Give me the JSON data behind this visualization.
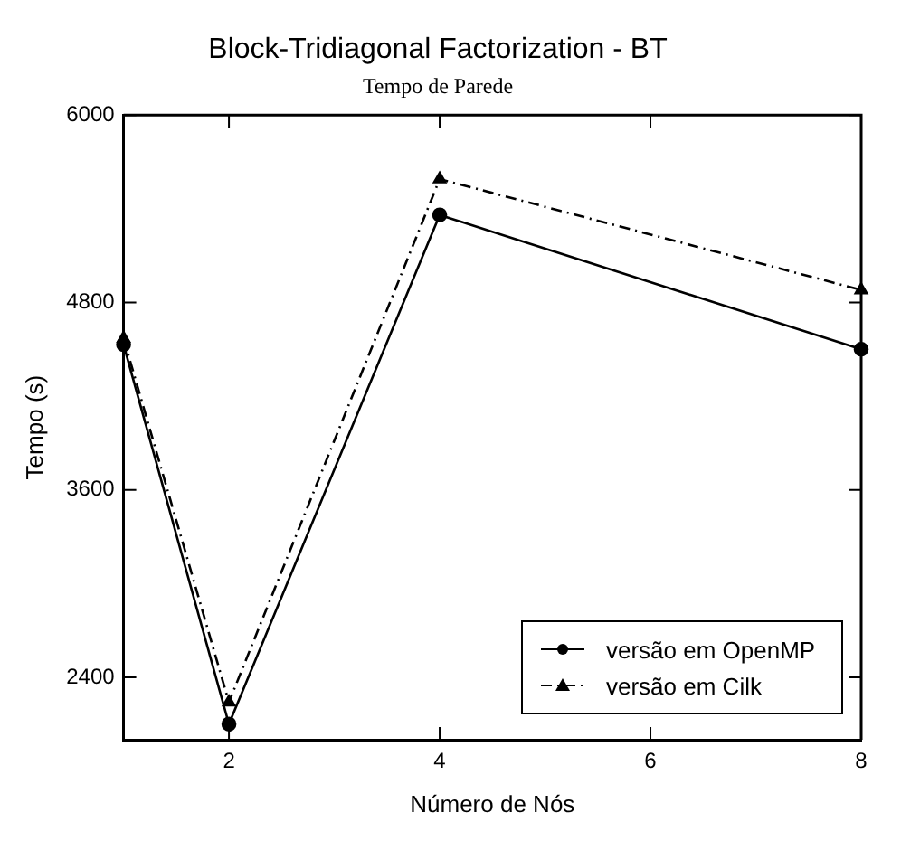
{
  "chart_data": {
    "type": "line",
    "title": "Block-Tridiagonal Factorization - BT",
    "subtitle": "Tempo de Parede",
    "xlabel": "Número de Nós",
    "ylabel": "Tempo (s)",
    "x": [
      1,
      2,
      4,
      8
    ],
    "series": [
      {
        "name": "versão em OpenMP",
        "color": "#000000",
        "values": [
          4530,
          2100,
          5360,
          4500
        ],
        "marker": "circle",
        "line_style": "solid"
      },
      {
        "name": "versão em Cilk",
        "color": "#000000",
        "values": [
          4570,
          2240,
          5590,
          4880
        ],
        "marker": "triangle",
        "line_style": "dashed"
      }
    ],
    "xlim": [
      1,
      8
    ],
    "xticks": [
      2,
      4,
      6,
      8
    ],
    "ylim": [
      2000,
      6000
    ],
    "yticks": [
      2400,
      3600,
      4800,
      6000
    ],
    "grid": false,
    "legend": "bottom right"
  }
}
